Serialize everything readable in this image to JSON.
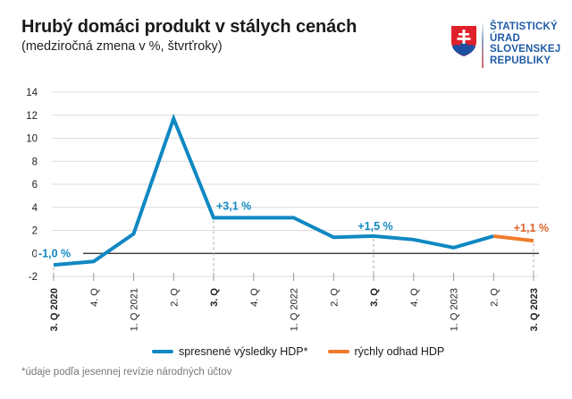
{
  "header": {
    "title": "Hrubý domáci produkt v stálych cenách",
    "subtitle": "(medziročná zmena v %, štvrťroky)"
  },
  "logo": {
    "icon": "slovak-coat-of-arms-icon",
    "lines": [
      "ŠTATISTICKÝ",
      "ÚRAD",
      "SLOVENSKEJ",
      "REPUBLIKY"
    ]
  },
  "chart_data": {
    "type": "line",
    "title": "Hrubý domáci produkt v stálych cenách",
    "subtitle": "(medziročná zmena v %, štvrťroky)",
    "xlabel": "",
    "ylabel": "",
    "ylim": [
      -2,
      14
    ],
    "yticks": [
      -2,
      0,
      2,
      4,
      6,
      8,
      10,
      12,
      14
    ],
    "grid": true,
    "legend_position": "bottom",
    "categories": [
      "3. Q 2020",
      "4. Q",
      "1. Q 2021",
      "2. Q",
      "3. Q",
      "4. Q",
      "1. Q 2022",
      "2. Q",
      "3. Q",
      "4. Q",
      "1. Q 2023",
      "2. Q",
      "3. Q 2023"
    ],
    "bold_categories": [
      0,
      4,
      8,
      12
    ],
    "series": [
      {
        "name": "spresnené výsledky HDP*",
        "color": "#0f88c2",
        "values": [
          -1.0,
          -0.7,
          1.7,
          11.7,
          3.1,
          3.1,
          3.1,
          1.4,
          1.5,
          1.2,
          0.5,
          1.5,
          null
        ]
      },
      {
        "name": "rýchly odhad HDP",
        "color": "#f07a2a",
        "values": [
          null,
          null,
          null,
          null,
          null,
          null,
          null,
          null,
          null,
          null,
          null,
          1.5,
          1.1
        ]
      }
    ],
    "annotations": [
      {
        "index": 0,
        "text": "-1,0 %",
        "color": "#0f88c2"
      },
      {
        "index": 4,
        "text": "+3,1 %",
        "color": "#0f88c2"
      },
      {
        "index": 8,
        "text": "+1,5 %",
        "color": "#0f88c2"
      },
      {
        "index": 12,
        "text": "+1,1 %",
        "color": "#e0642a"
      }
    ]
  },
  "legend": {
    "items": [
      {
        "label": "spresnené výsledky HDP*",
        "color": "#0f88c2"
      },
      {
        "label": "rýchly odhad HDP",
        "color": "#f07a2a"
      }
    ]
  },
  "footnote": "*údaje podľa jesennej revízie národných účtov"
}
